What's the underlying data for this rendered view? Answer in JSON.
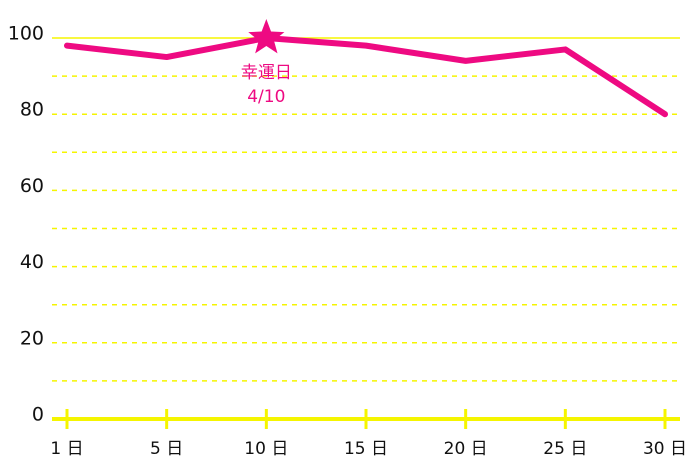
{
  "chart_data": {
    "type": "line",
    "categories": [
      "1 日",
      "5 日",
      "10 日",
      "15 日",
      "20 日",
      "25 日",
      "30 日"
    ],
    "series": [
      {
        "color": "#ee0a82",
        "values": [
          98,
          95,
          100,
          98,
          94,
          97,
          80
        ]
      }
    ],
    "ylim": [
      0,
      100
    ],
    "yticks": [
      0,
      20,
      40,
      60,
      80,
      100
    ],
    "minor_yticks": [
      10,
      30,
      50,
      70,
      90
    ],
    "grid": true,
    "grid_color": "#f5f500",
    "annotation": {
      "x": "10 日",
      "y": 100,
      "lines": [
        "幸運日",
        "4/10"
      ]
    }
  }
}
